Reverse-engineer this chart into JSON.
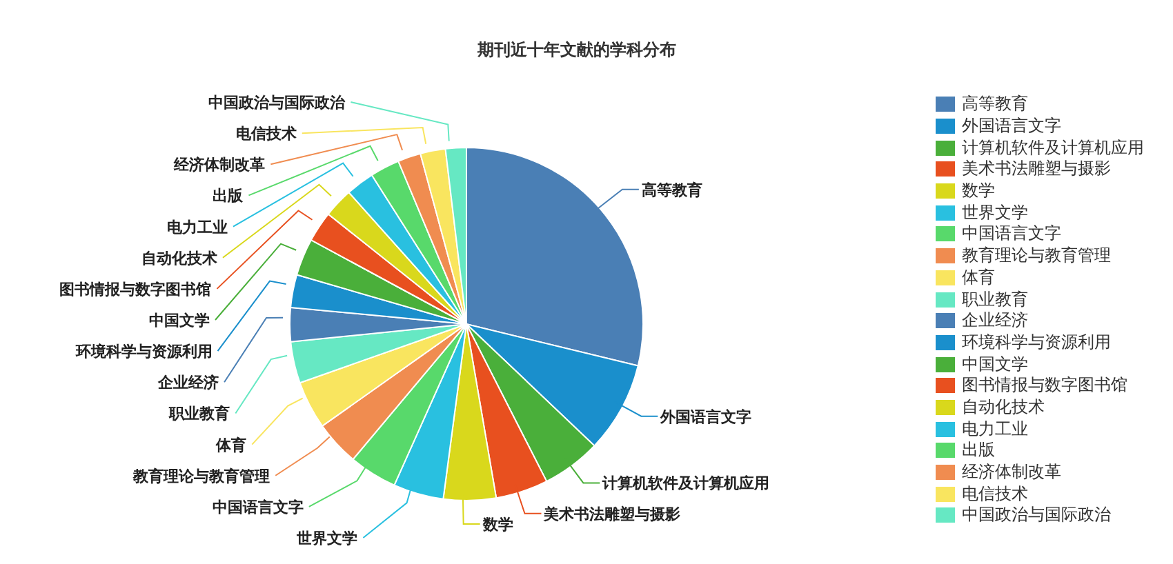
{
  "chart_data": {
    "type": "pie",
    "title": "期刊近十年文献的学科分布",
    "legend": "right",
    "categories": [
      "高等教育",
      "外国语言文字",
      "计算机软件及计算机应用",
      "美术书法雕塑与摄影",
      "数学",
      "世界文学",
      "中国语言文字",
      "教育理论与教育管理",
      "体育",
      "职业教育",
      "企业经济",
      "环境科学与资源利用",
      "中国文学",
      "图书情报与数字图书馆",
      "自动化技术",
      "电力工业",
      "出版",
      "经济体制改革",
      "电信技术",
      "中国政治与国际政治"
    ],
    "values": [
      28.8,
      8.3,
      5.4,
      4.8,
      4.8,
      4.6,
      4.4,
      4.1,
      4.4,
      3.8,
      3.1,
      3.0,
      3.4,
      2.8,
      2.7,
      2.6,
      2.7,
      2.1,
      2.3,
      1.9
    ],
    "colors": [
      "#4a7fb5",
      "#1a8fcc",
      "#4aaf3a",
      "#e8501f",
      "#d9d81c",
      "#29c0e0",
      "#58d96b",
      "#f08c50",
      "#f9e55f",
      "#66e8c3",
      "#4a7fb5",
      "#1a8fcc",
      "#4aaf3a",
      "#e8501f",
      "#d9d81c",
      "#29c0e0",
      "#58d96b",
      "#f08c50",
      "#f9e55f",
      "#66e8c3"
    ]
  }
}
